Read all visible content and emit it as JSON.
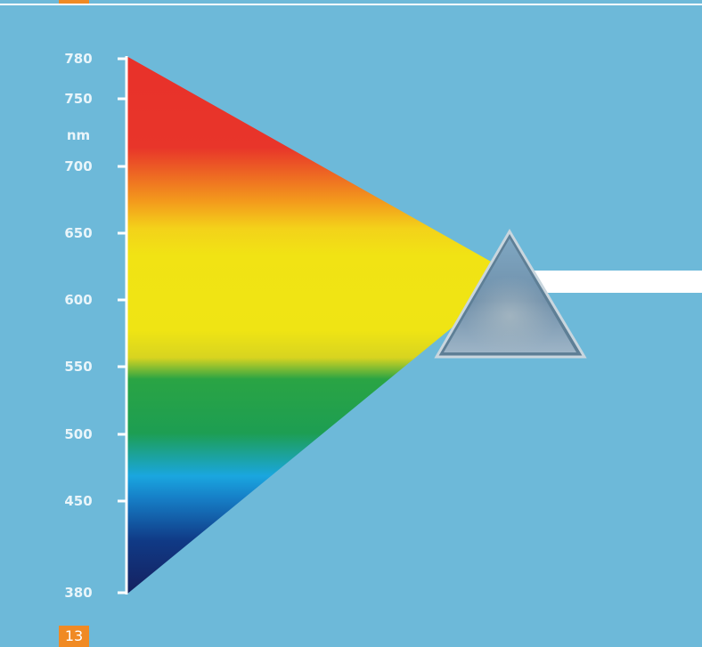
{
  "diagram": {
    "axis": {
      "unit": "nm",
      "ticks": [
        {
          "label": "780",
          "value": 780
        },
        {
          "label": "750",
          "value": 750
        },
        {
          "label": "700",
          "value": 700
        },
        {
          "label": "650",
          "value": 650
        },
        {
          "label": "600",
          "value": 600
        },
        {
          "label": "550",
          "value": 550
        },
        {
          "label": "500",
          "value": 500
        },
        {
          "label": "450",
          "value": 450
        },
        {
          "label": "380",
          "value": 380
        }
      ]
    },
    "spectrum_colors": {
      "red": "#e8312a",
      "orange": "#f7a21a",
      "yellow": "#f1e314",
      "green": "#1fa24a",
      "cyan": "#1aa6df",
      "blue": "#103a86",
      "violet": "#15205e"
    },
    "prism": {
      "icon": "prism-icon"
    },
    "light_beam": {
      "color": "#ffffff"
    }
  },
  "page": {
    "number": "13",
    "accent_color": "#f08a24",
    "background_color": "#6db9d9"
  }
}
